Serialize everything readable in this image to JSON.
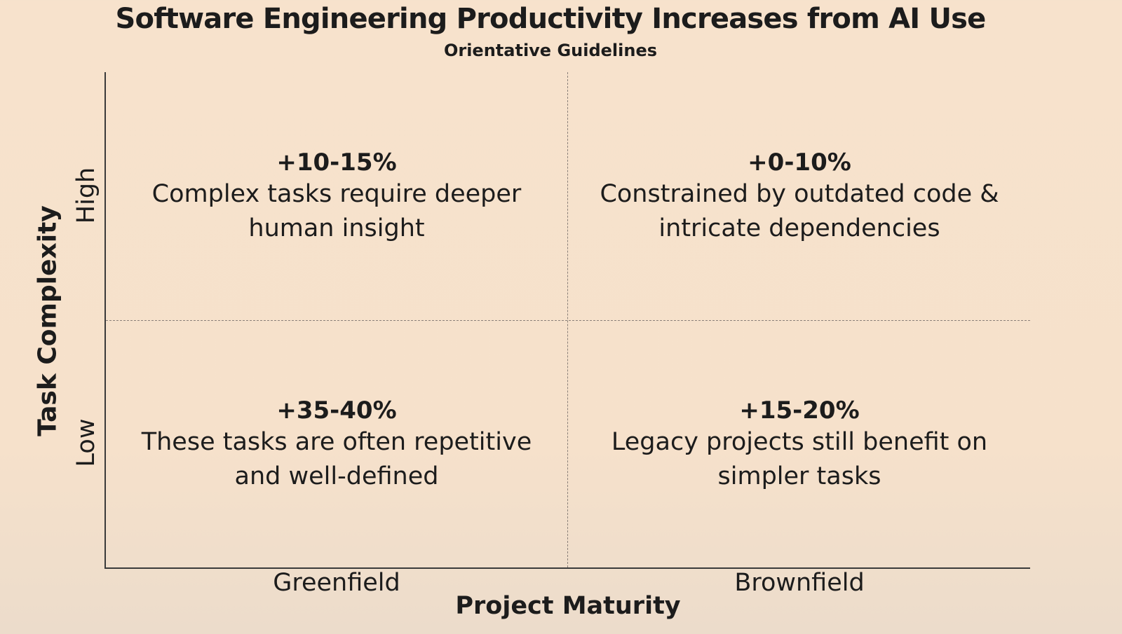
{
  "title": "Software Engineering Productivity Increases from AI Use",
  "subtitle": "Orientative Guidelines",
  "axes": {
    "y_title": "Task Complexity",
    "y_ticks": {
      "high": "High",
      "low": "Low"
    },
    "x_title": "Project Maturity",
    "x_ticks": {
      "greenfield": "Greenfield",
      "brownfield": "Brownfield"
    }
  },
  "quadrants": {
    "greenfield_high": {
      "value": "+10-15%",
      "desc_line1": "Complex tasks require deeper",
      "desc_line2": "human insight"
    },
    "brownfield_high": {
      "value": "+0-10%",
      "desc_line1": "Constrained by outdated code &",
      "desc_line2": "intricate dependencies"
    },
    "greenfield_low": {
      "value": "+35-40%",
      "desc_line1": "These tasks are often repetitive",
      "desc_line2": "and well-defined"
    },
    "brownfield_low": {
      "value": "+15-20%",
      "desc_line1": "Legacy projects still benefit on",
      "desc_line2": "simpler tasks"
    }
  },
  "colors": {
    "background": "#f7e2cc",
    "text": "#1c1c1c",
    "axis": "#3a3a3a",
    "divider": "#8a8079"
  }
}
